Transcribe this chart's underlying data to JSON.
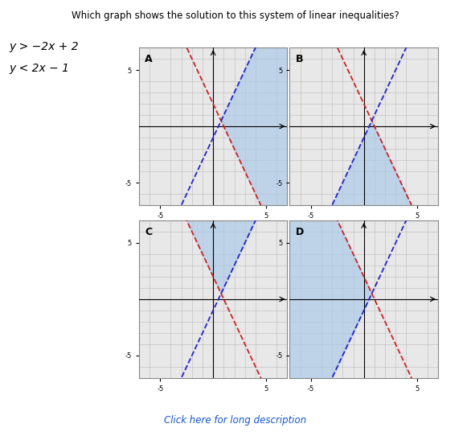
{
  "graphs": [
    "A",
    "B",
    "C",
    "D"
  ],
  "xlim": [
    -7,
    7
  ],
  "ylim": [
    -7,
    7
  ],
  "xticks": [
    -5,
    0,
    5
  ],
  "yticks": [
    -5,
    0,
    5
  ],
  "xtick_labels": [
    "-5",
    "",
    "5"
  ],
  "ytick_labels": [
    "-5",
    "",
    "5"
  ],
  "line1_slope": -2,
  "line1_intercept": 2,
  "line2_slope": 2,
  "line2_intercept": -1,
  "shade_color": "#a8c8e8",
  "shade_alpha": 0.65,
  "line1_color": "#cc2222",
  "line2_color": "#2222cc",
  "grid_color": "#bbbbbb",
  "panel_bg": "#e8e8e8",
  "label_fontsize": 9,
  "tick_fontsize": 6,
  "outer_bg": "#ffffff",
  "title": "Which graph shows the solution to this system of linear inequalities?",
  "eq1": "y > −2x + 2",
  "eq2": "y < 2x − 1",
  "click_text": "Click here for long description",
  "click_color": "#1155cc"
}
